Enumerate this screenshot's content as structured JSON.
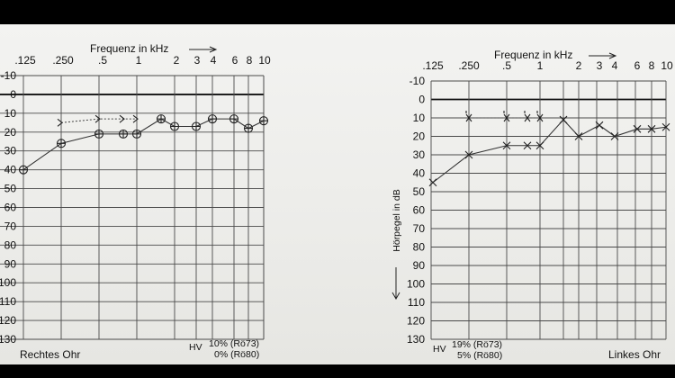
{
  "chart_data": [
    {
      "type": "line",
      "title": "Rechtes Ohr",
      "xlabel": "Frequenz in kHz",
      "ylabel": "",
      "x_ticks": [
        ".125",
        ".250",
        ".5",
        "1",
        "2",
        "3",
        "4",
        "6",
        "8",
        "10"
      ],
      "y_ticks": [
        "-10",
        "0",
        "10",
        "20",
        "30",
        "40",
        "50",
        "60",
        "70",
        "80",
        "90",
        "100",
        "110",
        "120",
        "130"
      ],
      "ylim": [
        -10,
        130
      ],
      "y_inverted": true,
      "series": [
        {
          "marker": "circle",
          "x": [
            0.125,
            0.25,
            0.5,
            0.75,
            1,
            1.5,
            2,
            3,
            4,
            6,
            8,
            10
          ],
          "values": [
            40,
            26,
            21,
            21,
            21,
            13,
            17,
            17,
            13,
            13,
            18,
            14
          ]
        },
        {
          "marker": "bone-right",
          "x": [
            0.25,
            0.5,
            0.75,
            1
          ],
          "values": [
            15,
            13,
            13,
            13
          ]
        }
      ],
      "annotations": {
        "hv": "HV",
        "line1": "10% (Rö73)",
        "line2": "0% (Rö80)"
      }
    },
    {
      "type": "line",
      "title": "Linkes Ohr",
      "xlabel": "Frequenz in kHz",
      "ylabel": "Hörpegel in dB",
      "x_ticks": [
        ".125",
        ".250",
        ".5",
        "1",
        "2",
        "3",
        "4",
        "6",
        "8",
        "10"
      ],
      "y_ticks": [
        "-10",
        "0",
        "10",
        "20",
        "30",
        "40",
        "50",
        "60",
        "70",
        "80",
        "90",
        "100",
        "110",
        "120",
        "130"
      ],
      "ylim": [
        -10,
        130
      ],
      "y_inverted": true,
      "series": [
        {
          "marker": "cross",
          "x": [
            0.125,
            0.25,
            0.5,
            0.75,
            1,
            1.5,
            2,
            3,
            4,
            6,
            8,
            10
          ],
          "values": [
            45,
            30,
            25,
            25,
            25,
            11,
            20,
            14,
            20,
            16,
            16,
            15
          ]
        },
        {
          "marker": "bone-left",
          "x": [
            0.25,
            0.5,
            0.75,
            1
          ],
          "values": [
            10,
            10,
            10,
            10
          ]
        }
      ],
      "annotations": {
        "hv": "HV",
        "line1": "19% (Rö73)",
        "line2": "5% (Rö80)"
      }
    }
  ]
}
